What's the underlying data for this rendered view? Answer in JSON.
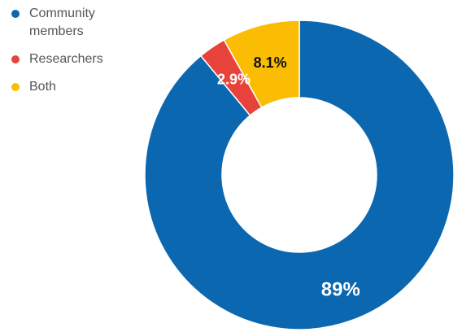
{
  "chart_data": {
    "type": "pie",
    "donut": true,
    "legend_position": "top-left",
    "slices": [
      {
        "label": "Community members",
        "value": 89,
        "display": "89%",
        "color": "#0b67b0",
        "label_color": "#ffffff"
      },
      {
        "label": "Researchers",
        "value": 2.9,
        "display": "2.9%",
        "color": "#e8433a",
        "label_color": "#ffffff"
      },
      {
        "label": "Both",
        "value": 8.1,
        "display": "8.1%",
        "color": "#fbbc04",
        "label_color": "#111111"
      }
    ]
  }
}
